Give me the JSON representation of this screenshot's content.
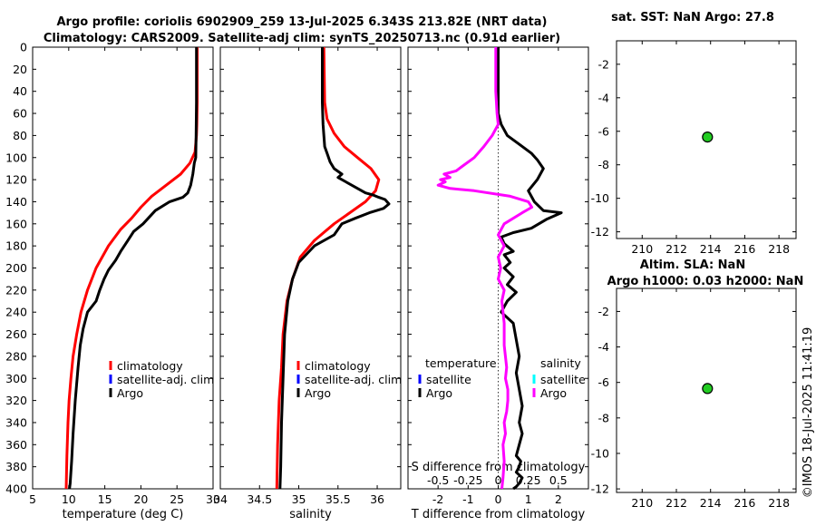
{
  "titles": {
    "line1": "Argo profile: coriolis 6902909_259 13-Jul-2025 6.343S 213.82E (NRT data)",
    "line2": "Climatology: CARS2009. Satellite-adj clim: synTS_20250713.nc (0.91d earlier)",
    "sst_title": "sat. SST: NaN Argo: 27.8",
    "sla_title1": "Altim. SLA: NaN",
    "sla_title2": "Argo h1000: 0.03 h2000: NaN",
    "watermark": "©IMOS 18-Jul-2025 11:41:19"
  },
  "colors": {
    "climatology": "#ff0000",
    "satellite": "#0000ff",
    "argo": "#000000",
    "salinity_diff": "#ff00ff",
    "salinity_sat": "#00ffff",
    "marker": "#22cc22"
  },
  "chart_data": [
    {
      "id": "temperature",
      "type": "line",
      "xlabel": "temperature (deg C)",
      "xlim": [
        5,
        30
      ],
      "xticks": [
        "5",
        "10",
        "15",
        "20",
        "25",
        "30"
      ],
      "ylim": [
        0,
        400
      ],
      "yticks": [
        "0",
        "20",
        "40",
        "60",
        "80",
        "100",
        "120",
        "140",
        "160",
        "180",
        "200",
        "220",
        "240",
        "260",
        "280",
        "300",
        "320",
        "340",
        "360",
        "380",
        "400"
      ],
      "legend": [
        "climatology",
        "satellite-adj. clim",
        "Argo"
      ],
      "series": [
        {
          "name": "climatology",
          "x": [
            27.8,
            27.8,
            27.75,
            27.7,
            27.5,
            26.8,
            25.5,
            23.5,
            21.5,
            20,
            18.7,
            17.2,
            15.5,
            13.8,
            12.6,
            11.7,
            11.1,
            10.6,
            10.3,
            10.05,
            9.9,
            9.75,
            9.65
          ],
          "y": [
            0,
            50,
            70,
            80,
            95,
            105,
            115,
            125,
            135,
            145,
            155,
            165,
            180,
            200,
            220,
            240,
            260,
            280,
            300,
            320,
            340,
            370,
            400
          ]
        },
        {
          "name": "Argo",
          "x": [
            27.7,
            27.7,
            27.65,
            27.6,
            27.4,
            27.2,
            26.9,
            26.5,
            25.8,
            24,
            22,
            20.3,
            19,
            18.2,
            17.2,
            16.5,
            15.5,
            14.9,
            14.3,
            13.8,
            12.6,
            12,
            11.6,
            11.3,
            10.9,
            10.6,
            10.4,
            10.2,
            10.1
          ],
          "y": [
            0,
            50,
            80,
            100,
            105,
            115,
            125,
            132,
            136,
            140,
            148,
            160,
            167,
            175,
            185,
            193,
            202,
            210,
            220,
            230,
            240,
            255,
            270,
            290,
            320,
            350,
            375,
            395,
            400
          ]
        }
      ]
    },
    {
      "id": "salinity",
      "type": "line",
      "xlabel": "salinity",
      "xlim": [
        34,
        36.3
      ],
      "xticks": [
        "34",
        "34.5",
        "35",
        "35.5",
        "36"
      ],
      "ylim": [
        0,
        400
      ],
      "legend": [
        "climatology",
        "satellite-adj. clim",
        "Argo"
      ],
      "series": [
        {
          "name": "climatology",
          "x": [
            35.32,
            35.33,
            35.36,
            35.45,
            35.58,
            35.75,
            35.92,
            36.02,
            35.98,
            35.85,
            35.65,
            35.45,
            35.2,
            35.02,
            34.92,
            34.85,
            34.8,
            34.78,
            34.75,
            34.73,
            34.72
          ],
          "y": [
            0,
            50,
            65,
            78,
            90,
            100,
            110,
            120,
            130,
            140,
            150,
            160,
            175,
            190,
            210,
            230,
            260,
            290,
            320,
            360,
            400
          ]
        },
        {
          "name": "Argo",
          "x": [
            35.3,
            35.3,
            35.31,
            35.32,
            35.33,
            35.36,
            35.38,
            35.4,
            35.45,
            35.55,
            35.5,
            35.6,
            35.75,
            35.85,
            35.95,
            36.02,
            36.1,
            36.15,
            36.08,
            35.9,
            35.72,
            35.55,
            35.45,
            35.2,
            35.0,
            34.92,
            34.86,
            34.82,
            34.8,
            34.78,
            34.77,
            34.76
          ],
          "y": [
            0,
            50,
            70,
            80,
            90,
            96,
            100,
            104,
            110,
            115,
            118,
            122,
            128,
            132,
            134,
            136,
            138,
            142,
            146,
            150,
            155,
            160,
            170,
            180,
            195,
            210,
            230,
            260,
            300,
            340,
            380,
            400
          ]
        }
      ]
    },
    {
      "id": "difference",
      "type": "line",
      "xlabel": "T difference from climatology",
      "top_label": "S difference from climatology",
      "xlim": [
        -3,
        3
      ],
      "xticks": [
        "-2",
        "-1",
        "0",
        "1",
        "2"
      ],
      "sticks": [
        "-0.5",
        "-0.25",
        "0",
        "0.25",
        "0.5"
      ],
      "ylim": [
        0,
        400
      ],
      "legend_t_title": "temperature",
      "legend_s_title": "salinity",
      "legend_t": [
        "satellite",
        "Argo"
      ],
      "legend_s": [
        "satellite",
        "Argo"
      ],
      "series": [
        {
          "name": "T difference Argo",
          "x": [
            0,
            0,
            0.1,
            0.3,
            0.7,
            1.1,
            1.3,
            1.5,
            1.3,
            1.0,
            1.2,
            1.5,
            2.1,
            1.6,
            1.1,
            0.5,
            0.1,
            0.2,
            0.5,
            0.2,
            0.4,
            0.2,
            0.5,
            0.3,
            0.6,
            0.3,
            0.1,
            0.5,
            0.6,
            0.7,
            0.6,
            0.7,
            0.8,
            0.7,
            0.8,
            0.7,
            0.6,
            0.75,
            0.7,
            0.6,
            0.8,
            0.7,
            0.6,
            0.5
          ],
          "y": [
            0,
            60,
            70,
            80,
            88,
            96,
            102,
            110,
            120,
            130,
            140,
            148,
            150,
            156,
            164,
            168,
            172,
            178,
            185,
            188,
            195,
            200,
            208,
            215,
            222,
            230,
            240,
            250,
            265,
            280,
            295,
            310,
            325,
            340,
            350,
            360,
            370,
            375,
            380,
            385,
            390,
            395,
            398,
            400
          ]
        },
        {
          "name": "S difference Argo",
          "x": [
            -0.02,
            -0.02,
            -0.01,
            0,
            -0.05,
            -0.12,
            -0.2,
            -0.3,
            -0.35,
            -0.45,
            -0.4,
            -0.48,
            -0.44,
            -0.5,
            -0.4,
            -0.2,
            0.1,
            0.25,
            0.28,
            0.2,
            0.05,
            0,
            0.05,
            0,
            0.02,
            0,
            0.05,
            0.03,
            0.05,
            0.05,
            0.07,
            0.06,
            0.08,
            0.08,
            0.07,
            0.05,
            0.06,
            0.04,
            0.05,
            0.04,
            0.03
          ],
          "y": [
            0,
            40,
            60,
            70,
            80,
            90,
            100,
            108,
            112,
            115,
            118,
            120,
            122,
            125,
            128,
            130,
            135,
            140,
            145,
            150,
            160,
            170,
            180,
            190,
            200,
            210,
            220,
            230,
            250,
            270,
            290,
            300,
            310,
            320,
            330,
            340,
            350,
            360,
            375,
            390,
            400
          ]
        }
      ]
    },
    {
      "id": "sst_map",
      "type": "scatter",
      "xlim": [
        208.5,
        219
      ],
      "xticks": [
        "210",
        "212",
        "214",
        "216",
        "218"
      ],
      "ylim": [
        -12.4,
        -0.6
      ],
      "yticks": [
        "-2",
        "-4",
        "-6",
        "-8",
        "-10",
        "-12"
      ],
      "points": [
        {
          "x": 213.82,
          "y": -6.343
        }
      ]
    },
    {
      "id": "sla_map",
      "type": "scatter",
      "xlim": [
        208.5,
        219
      ],
      "xticks": [
        "210",
        "212",
        "214",
        "216",
        "218"
      ],
      "ylim": [
        -12.2,
        -0.7
      ],
      "yticks": [
        "-2",
        "-4",
        "-6",
        "-8",
        "-10",
        "-12"
      ],
      "points": [
        {
          "x": 213.82,
          "y": -6.343
        }
      ]
    }
  ]
}
